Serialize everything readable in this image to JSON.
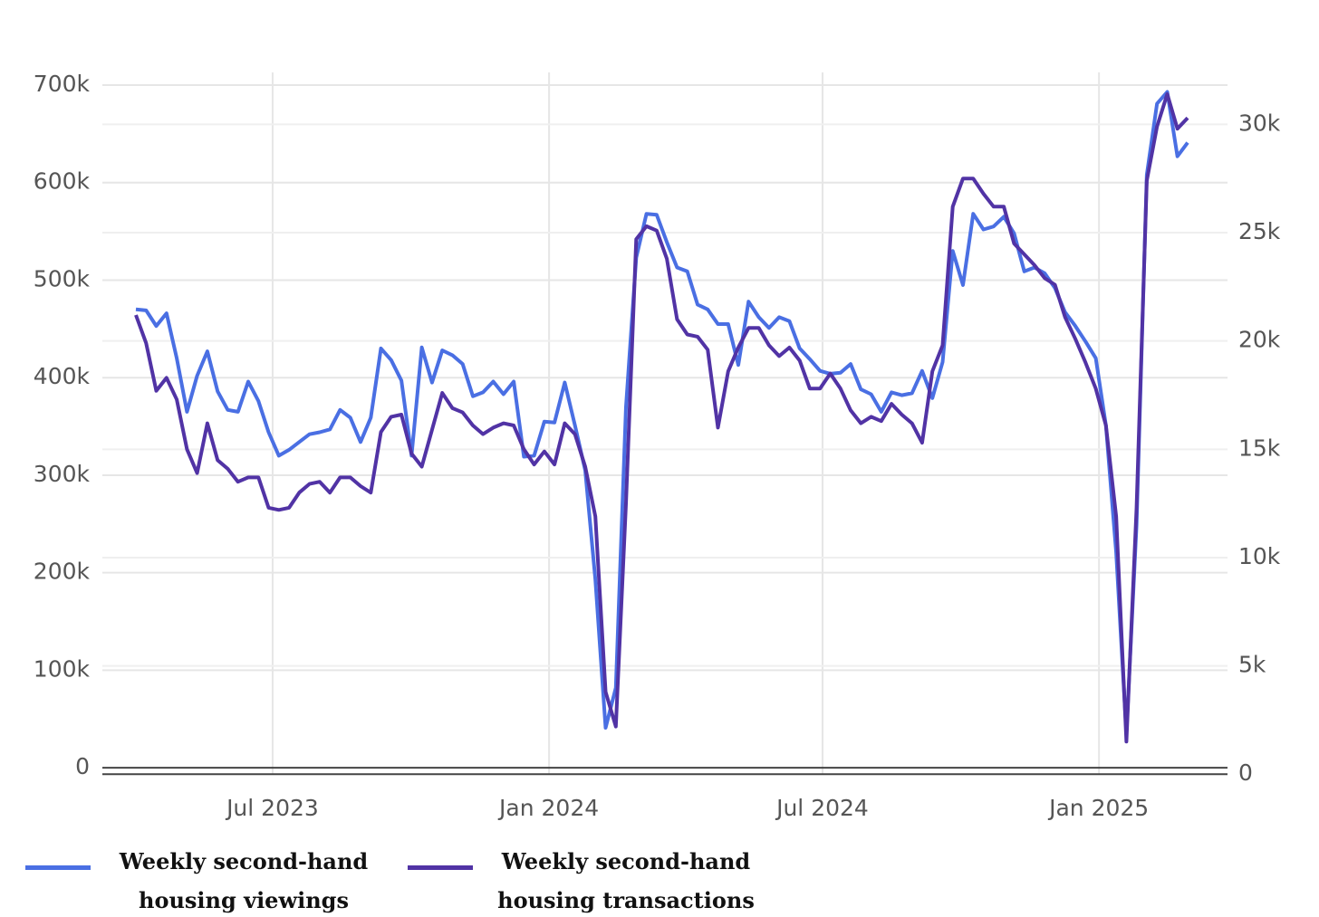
{
  "chart_data": {
    "type": "line",
    "xlim": [
      "2023-04",
      "2025-03"
    ],
    "xticks": [
      {
        "value": "2023-07",
        "label": "Jul 2023"
      },
      {
        "value": "2024-01",
        "label": "Jan 2024"
      },
      {
        "value": "2024-07",
        "label": "Jul 2024"
      },
      {
        "value": "2025-01",
        "label": "Jan 2025"
      }
    ],
    "ylim": [
      -11000,
      713000
    ],
    "yticks": [
      0,
      {
        "value": 100000,
        "label": "100k"
      },
      {
        "value": 200000,
        "label": "200k"
      },
      {
        "value": 300000,
        "label": "300k"
      },
      {
        "value": 400000,
        "label": "400k"
      },
      {
        "value": 500000,
        "label": "500k"
      },
      {
        "value": 600000,
        "label": "600k"
      },
      {
        "value": 700000,
        "label": "700k"
      }
    ],
    "y2lim": [
      -200,
      32400
    ],
    "y2ticks": [
      0,
      {
        "value": 5000,
        "label": "5k"
      },
      {
        "value": 10000,
        "label": "10k"
      },
      {
        "value": 15000,
        "label": "15k"
      },
      {
        "value": 20000,
        "label": "20k"
      },
      {
        "value": 25000,
        "label": "25k"
      },
      {
        "value": 30000,
        "label": "30k"
      }
    ],
    "grid": true,
    "series": [
      {
        "name": "Weekly second-hand housing viewings",
        "color": "#4a6fe3",
        "values": [
          470000,
          469000,
          453000,
          466000,
          420000,
          365000,
          402000,
          427000,
          386000,
          367000,
          365000,
          396000,
          376000,
          344000,
          320000,
          326000,
          334000,
          342000,
          344000,
          347000,
          367000,
          359000,
          334000,
          359000,
          430000,
          418000,
          397000,
          320000,
          431000,
          395000,
          428000,
          423000,
          414000,
          381000,
          385000,
          396000,
          383000,
          396000,
          319000,
          320000,
          355000,
          354000,
          395000,
          351000,
          305000,
          193000,
          41000,
          82000,
          370000,
          523000,
          568000,
          567000,
          539000,
          513000,
          509000,
          475000,
          470000,
          455000,
          455000,
          413000,
          478000,
          462000,
          451000,
          462000,
          458000,
          430000,
          419000,
          407000,
          404000,
          405000,
          414000,
          388000,
          383000,
          365000,
          385000,
          382000,
          384000,
          407000,
          379000,
          416000,
          530000,
          495000,
          568000,
          552000,
          555000,
          565000,
          548000,
          509000,
          513000,
          507000,
          492000,
          467000,
          453000,
          437000,
          420000,
          351000,
          221000,
          35000,
          249000,
          608000,
          681000,
          693000,
          627000,
          641000
        ]
      },
      {
        "name": "Weekly second-hand housing transactions",
        "color": "#5133a5",
        "axis": "y2",
        "values": [
          21200,
          19900,
          17700,
          18300,
          17300,
          15000,
          13900,
          16200,
          14500,
          14100,
          13500,
          13700,
          13700,
          12300,
          12200,
          12300,
          13000,
          13400,
          13500,
          13000,
          13700,
          13700,
          13300,
          13000,
          15800,
          16500,
          16600,
          14800,
          14200,
          15900,
          17600,
          16900,
          16700,
          16100,
          15700,
          16000,
          16200,
          16100,
          15000,
          14300,
          14900,
          14300,
          16200,
          15700,
          14200,
          11900,
          3800,
          2200,
          12500,
          24700,
          25300,
          25100,
          23800,
          21000,
          20300,
          20200,
          19600,
          16000,
          18600,
          19700,
          20600,
          20600,
          19800,
          19300,
          19700,
          19100,
          17800,
          17800,
          18500,
          17800,
          16800,
          16200,
          16500,
          16300,
          17100,
          16600,
          16200,
          15300,
          18600,
          19800,
          26200,
          27500,
          27500,
          26800,
          26200,
          26200,
          24500,
          24000,
          23500,
          22900,
          22600,
          21100,
          20100,
          19000,
          17800,
          16100,
          11900,
          1500,
          12300,
          27400,
          29900,
          31400,
          29800,
          30300
        ]
      }
    ]
  }
}
